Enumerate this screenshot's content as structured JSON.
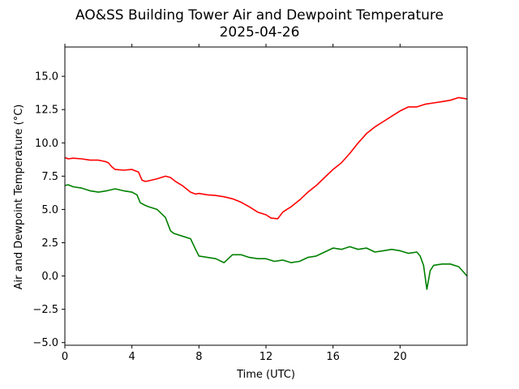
{
  "chart_data": {
    "type": "line",
    "title": "AO&SS Building Tower Air and Dewpoint Temperature",
    "subtitle": "2025-04-26",
    "xlabel": "Time (UTC)",
    "ylabel": "Air and Dewpoint Temperature (°C)",
    "xlim": [
      0,
      24
    ],
    "ylim": [
      -5.2,
      17.2
    ],
    "xticks": [
      0,
      4,
      8,
      12,
      16,
      20
    ],
    "xtick_labels": [
      "0",
      "4",
      "8",
      "12",
      "16",
      "20"
    ],
    "yticks": [
      -5,
      -2.5,
      0,
      2.5,
      5,
      7.5,
      10,
      12.5,
      15
    ],
    "ytick_labels": [
      "−5.0",
      "−2.5",
      "0.0",
      "2.5",
      "5.0",
      "7.5",
      "10.0",
      "12.5",
      "15.0"
    ],
    "grid": false,
    "legend": false,
    "series": [
      {
        "color": "#ff0000",
        "x": [
          0,
          0.2,
          0.5,
          1,
          1.5,
          2,
          2.4,
          2.6,
          2.8,
          3,
          3.5,
          4,
          4.2,
          4.4,
          4.6,
          4.8,
          5,
          5.5,
          6,
          6.3,
          6.6,
          7,
          7.5,
          7.8,
          8,
          8.5,
          9,
          9.5,
          10,
          10.5,
          11,
          11.5,
          12,
          12.3,
          12.7,
          13,
          13.5,
          14,
          14.5,
          15,
          15.5,
          16,
          16.5,
          17,
          17.5,
          18,
          18.5,
          19,
          19.5,
          20,
          20.5,
          21,
          21.5,
          22,
          22.5,
          23,
          23.5,
          24
        ],
        "y": [
          8.9,
          8.8,
          8.85,
          8.8,
          8.7,
          8.7,
          8.6,
          8.5,
          8.2,
          8.0,
          7.95,
          8.0,
          7.9,
          7.8,
          7.2,
          7.1,
          7.15,
          7.3,
          7.5,
          7.4,
          7.1,
          6.8,
          6.3,
          6.15,
          6.2,
          6.1,
          6.05,
          5.95,
          5.8,
          5.55,
          5.2,
          4.8,
          4.6,
          4.35,
          4.3,
          4.8,
          5.2,
          5.7,
          6.3,
          6.8,
          7.4,
          8.0,
          8.5,
          9.2,
          10.0,
          10.7,
          11.2,
          11.6,
          12.0,
          12.4,
          12.7,
          12.7,
          12.9,
          13.0,
          13.1,
          13.2,
          13.4,
          13.3
        ]
      },
      {
        "color": "#008000",
        "x": [
          0,
          0.2,
          0.5,
          1,
          1.5,
          2,
          2.5,
          3,
          3.5,
          4,
          4.3,
          4.5,
          4.8,
          5,
          5.5,
          6,
          6.3,
          6.5,
          7,
          7.5,
          7.8,
          8,
          8.5,
          9,
          9.5,
          10,
          10.5,
          11,
          11.5,
          12,
          12.5,
          13,
          13.5,
          14,
          14.5,
          15,
          15.5,
          16,
          16.5,
          17,
          17.5,
          18,
          18.5,
          19,
          19.5,
          20,
          20.5,
          21,
          21.2,
          21.4,
          21.6,
          21.8,
          22,
          22.5,
          23,
          23.5,
          24
        ],
        "y": [
          6.8,
          6.85,
          6.7,
          6.6,
          6.4,
          6.3,
          6.4,
          6.55,
          6.4,
          6.3,
          6.1,
          5.5,
          5.3,
          5.2,
          5.0,
          4.4,
          3.4,
          3.2,
          3.0,
          2.8,
          2.0,
          1.5,
          1.4,
          1.3,
          1.0,
          1.6,
          1.6,
          1.4,
          1.3,
          1.3,
          1.1,
          1.2,
          1.0,
          1.1,
          1.4,
          1.5,
          1.8,
          2.1,
          2.0,
          2.2,
          2.0,
          2.1,
          1.8,
          1.9,
          2.0,
          1.9,
          1.7,
          1.8,
          1.5,
          0.8,
          -1.0,
          0.4,
          0.8,
          0.9,
          0.9,
          0.7,
          0.0
        ]
      }
    ]
  }
}
